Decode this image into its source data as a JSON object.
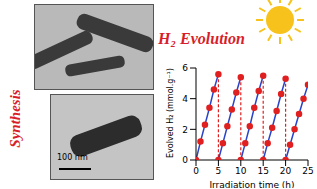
{
  "chart_data": {
    "type": "line",
    "xlabel": "Irradiation time (h)",
    "ylabel": "Evolved H₂ (mmol.g⁻¹)",
    "annotations": [
      "Synthesis",
      "H₂ Evolution",
      "100 nm"
    ],
    "xlim": [
      0,
      25
    ],
    "xticks": [
      0,
      5,
      10,
      15,
      20,
      25
    ],
    "ylim": [
      0,
      6
    ],
    "yticks": [
      0,
      2,
      4,
      6
    ],
    "marker": "circle",
    "series": [
      {
        "color": "#2a44c8",
        "x": [
          0,
          1,
          2,
          3,
          4,
          5
        ],
        "values": [
          0,
          1.2,
          2.3,
          3.4,
          4.6,
          5.6
        ]
      },
      {
        "color": "#2a44c8",
        "x": [
          5,
          6,
          7,
          8,
          9,
          10
        ],
        "values": [
          0,
          1.1,
          2.2,
          3.3,
          4.4,
          5.4
        ]
      },
      {
        "color": "#2a44c8",
        "x": [
          10,
          11,
          12,
          13,
          14,
          15
        ],
        "values": [
          0,
          1.1,
          2.2,
          3.4,
          4.5,
          5.5
        ]
      },
      {
        "color": "#2a44c8",
        "x": [
          15,
          16,
          17,
          18,
          19,
          20
        ],
        "values": [
          0,
          1.1,
          2.1,
          3.2,
          4.3,
          5.3
        ]
      },
      {
        "color": "#2a44c8",
        "x": [
          20,
          21,
          22,
          23,
          24,
          25
        ],
        "values": [
          0,
          1.0,
          2.0,
          3.0,
          4.0,
          4.9
        ]
      }
    ]
  }
}
